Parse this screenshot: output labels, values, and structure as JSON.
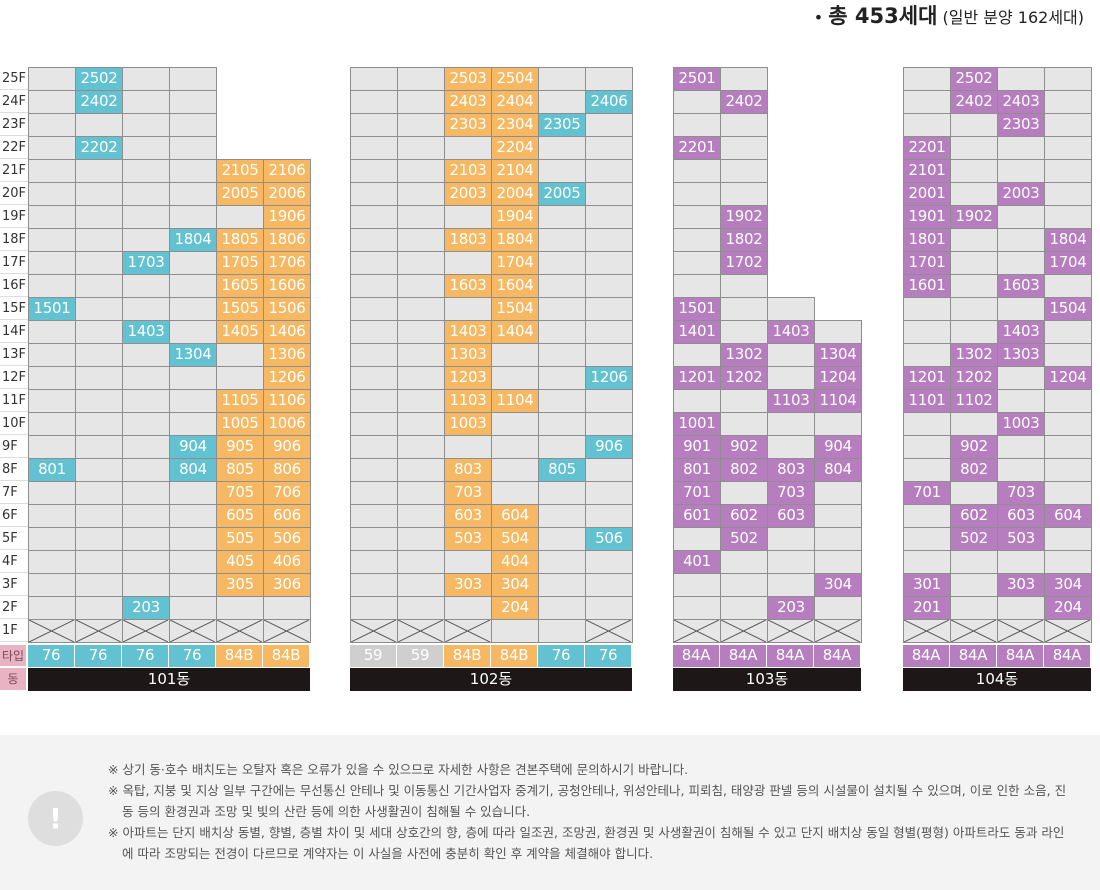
{
  "header": {
    "total": "총 453세대",
    "detail": "(일반 분양 162세대)"
  },
  "floors": [
    "25F",
    "24F",
    "23F",
    "22F",
    "21F",
    "20F",
    "19F",
    "18F",
    "17F",
    "16F",
    "15F",
    "14F",
    "13F",
    "12F",
    "11F",
    "10F",
    "9F",
    "8F",
    "7F",
    "6F",
    "5F",
    "4F",
    "3F",
    "2F",
    "1F"
  ],
  "row_labels": {
    "type": "타입",
    "building": "동"
  },
  "type_colors": {
    "76": "#62c2d1",
    "84B": "#f6b862",
    "59": "#cfcfcf",
    "84A": "#b67ebf"
  },
  "buildings": [
    {
      "name": "101동",
      "types": [
        "76",
        "76",
        "76",
        "76",
        "84B",
        "84B"
      ],
      "units": [
        "2502",
        "2402",
        "2202",
        "2105",
        "2106",
        "2005",
        "2006",
        "1906",
        "1804",
        "1805",
        "1806",
        "1703",
        "1705",
        "1706",
        "1605",
        "1606",
        "1501",
        "1505",
        "1506",
        "1403",
        "1405",
        "1406",
        "1304",
        "1306",
        "1206",
        "1105",
        "1106",
        "1005",
        "1006",
        "904",
        "905",
        "906",
        "801",
        "804",
        "805",
        "806",
        "705",
        "706",
        "605",
        "606",
        "505",
        "506",
        "405",
        "406",
        "305",
        "306",
        "203"
      ]
    },
    {
      "name": "102동",
      "types": [
        "59",
        "59",
        "84B",
        "84B",
        "76",
        "76"
      ],
      "units": [
        "2503",
        "2504",
        "2403",
        "2404",
        "2406",
        "2303",
        "2304",
        "2305",
        "2204",
        "2103",
        "2104",
        "2003",
        "2004",
        "2005",
        "1904",
        "1803",
        "1804",
        "1704",
        "1603",
        "1604",
        "1504",
        "1403",
        "1404",
        "1303",
        "1203",
        "1206",
        "1103",
        "1104",
        "1003",
        "906",
        "803",
        "805",
        "703",
        "603",
        "604",
        "503",
        "504",
        "506",
        "404",
        "303",
        "304",
        "204"
      ]
    },
    {
      "name": "103동",
      "types": [
        "84A",
        "84A",
        "84A",
        "84A"
      ],
      "units": [
        "2501",
        "2402",
        "2201",
        "1902",
        "1802",
        "1702",
        "1501",
        "1401",
        "1403",
        "1302",
        "1304",
        "1201",
        "1202",
        "1204",
        "1103",
        "1104",
        "1001",
        "901",
        "902",
        "904",
        "801",
        "802",
        "803",
        "804",
        "701",
        "703",
        "601",
        "602",
        "603",
        "502",
        "401",
        "304",
        "203"
      ]
    },
    {
      "name": "104동",
      "types": [
        "84A",
        "84A",
        "84A",
        "84A"
      ],
      "units": [
        "2502",
        "2402",
        "2403",
        "2303",
        "2201",
        "2101",
        "2001",
        "2003",
        "1901",
        "1902",
        "1801",
        "1804",
        "1701",
        "1704",
        "1601",
        "1603",
        "1504",
        "1403",
        "1302",
        "1303",
        "1201",
        "1202",
        "1204",
        "1101",
        "1102",
        "1003",
        "902",
        "802",
        "701",
        "703",
        "602",
        "603",
        "604",
        "502",
        "503",
        "301",
        "303",
        "304",
        "201",
        "204"
      ]
    }
  ],
  "notes": [
    "※ 상기 동·호수 배치도는 오탈자 혹은 오류가 있을 수 있으므로 자세한 사항은 견본주택에 문의하시기 바랍니다.",
    "※ 옥탑, 지붕 및 지상 일부 구간에는 무선통신 안테나 및 이동통신 기간사업자 중계기, 공청안테나, 위성안테나, 피뢰침, 태양광 판넬 등의 시설물이 설치될 수 있으며, 이로 인한 소음, 진동 등의 환경권과 조망 및 빛의 산란 등에 의한 사생활권이 침해될 수 있습니다.",
    "※ 아파트는 단지 배치상 동별, 향별, 층별 차이 및 세대 상호간의 향, 층에 따라 일조권, 조망권, 환경권 및 사생활권이 침해될 수 있고 단지 배치상 동일 형별(평형) 아파트라도 동과 라인에 따라 조망되는 전경이 다르므로 계약자는 이 사실을 사전에 충분히 확인 후 계약을 체결해야 합니다."
  ]
}
